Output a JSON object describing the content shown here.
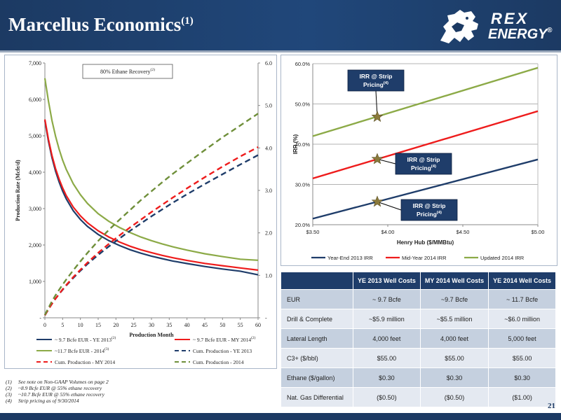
{
  "slide": {
    "title": "Marcellus Economics",
    "title_sup": "(1)",
    "page_number": "21",
    "logo_line1": "REX",
    "logo_line2": "ENERGY",
    "logo_mark": "®"
  },
  "colors": {
    "navy": "#1f3d6a",
    "red": "#ee1c1c",
    "green": "#8caa47",
    "dashed_green": "#6f8f3a",
    "star": "#8a7a3c"
  },
  "chart_data": [
    {
      "type": "line",
      "annotation": "80% Ethane Recovery",
      "annotation_sup": "(2)",
      "xlabel": "Production Month",
      "ylabel": "Production Rate (Mcfe/d)",
      "xlim": [
        0,
        60
      ],
      "ylim": [
        0,
        7000
      ],
      "y2lim": [
        0,
        6.0
      ],
      "x_ticks": [
        0,
        5,
        10,
        15,
        20,
        25,
        30,
        35,
        40,
        45,
        50,
        55,
        60
      ],
      "y_tick_labels": [
        "-",
        "1,000",
        "2,000",
        "3,000",
        "4,000",
        "5,000",
        "6,000",
        "7,000"
      ],
      "y2_tick_labels": [
        "-",
        "1.0",
        "2.0",
        "3.0",
        "4.0",
        "5.0",
        "6.0"
      ],
      "x": [
        0,
        1,
        2,
        3,
        4,
        5,
        6,
        8,
        10,
        12,
        15,
        18,
        21,
        24,
        27,
        30,
        33,
        36,
        40,
        45,
        50,
        55,
        60
      ],
      "series": [
        {
          "name": "~ 9.7 Bcfe EUR - YE 2013",
          "sup": "(2)",
          "axis": "left",
          "style": "solid",
          "color_key": "navy",
          "values": [
            5420,
            4850,
            4400,
            4030,
            3730,
            3480,
            3270,
            2940,
            2700,
            2510,
            2290,
            2120,
            1985,
            1870,
            1775,
            1695,
            1625,
            1560,
            1490,
            1410,
            1340,
            1280,
            1180
          ]
        },
        {
          "name": "~ 9.7 Bcfe EUR - MY 2014",
          "sup": "(2)",
          "axis": "left",
          "style": "solid",
          "color_key": "red",
          "values": [
            5450,
            4900,
            4460,
            4100,
            3810,
            3570,
            3360,
            3040,
            2800,
            2610,
            2390,
            2220,
            2080,
            1965,
            1870,
            1790,
            1715,
            1650,
            1575,
            1495,
            1430,
            1370,
            1310
          ]
        },
        {
          "name": "~11.7 Bcfe EUR - 2014",
          "sup": "(3)",
          "axis": "left",
          "style": "solid",
          "color_key": "green",
          "values": [
            6580,
            5950,
            5420,
            4990,
            4630,
            4330,
            4080,
            3680,
            3380,
            3140,
            2860,
            2650,
            2480,
            2340,
            2220,
            2120,
            2030,
            1950,
            1860,
            1760,
            1680,
            1610,
            1580
          ]
        },
        {
          "name": "Cum. Production - YE 2013",
          "axis": "right",
          "style": "dashed",
          "color_key": "navy",
          "values": [
            0.06,
            0.2,
            0.33,
            0.45,
            0.56,
            0.66,
            0.76,
            0.94,
            1.11,
            1.27,
            1.48,
            1.68,
            1.87,
            2.05,
            2.22,
            2.39,
            2.55,
            2.71,
            2.91,
            3.15,
            3.38,
            3.61,
            3.83
          ]
        },
        {
          "name": "Cum. Production - MY 2014",
          "axis": "right",
          "style": "dashed",
          "color_key": "red",
          "values": [
            0.06,
            0.2,
            0.33,
            0.45,
            0.56,
            0.67,
            0.77,
            0.96,
            1.13,
            1.3,
            1.53,
            1.74,
            1.94,
            2.13,
            2.31,
            2.49,
            2.66,
            2.83,
            3.05,
            3.31,
            3.56,
            3.8,
            4.02
          ]
        },
        {
          "name": "Cum. Production - 2014",
          "axis": "right",
          "style": "dashed",
          "color_key": "dashed_green",
          "values": [
            0.07,
            0.23,
            0.39,
            0.53,
            0.66,
            0.78,
            0.9,
            1.12,
            1.33,
            1.53,
            1.81,
            2.07,
            2.31,
            2.54,
            2.77,
            2.98,
            3.19,
            3.39,
            3.64,
            3.95,
            4.25,
            4.53,
            4.81
          ]
        }
      ]
    },
    {
      "type": "line",
      "xlabel": "Henry Hub ($/MMBtu)",
      "ylabel": "IRR (%)",
      "xlim": [
        3.5,
        5.0
      ],
      "ylim": [
        20,
        60
      ],
      "x_tick_labels": [
        "$3.50",
        "$4.00",
        "$4.50",
        "$5.00"
      ],
      "y_tick_labels": [
        "20.0%",
        "30.0%",
        "40.0%",
        "50.0%",
        "60.0%"
      ],
      "x": [
        3.5,
        5.0
      ],
      "series": [
        {
          "name": "Year-End 2013 IRR",
          "color_key": "navy",
          "values": [
            21.5,
            36.2
          ]
        },
        {
          "name": "Mid-Year 2014 IRR",
          "color_key": "red",
          "values": [
            31.5,
            48.2
          ]
        },
        {
          "name": "Updated 2014 IRR",
          "color_key": "green",
          "values": [
            42.0,
            59.0
          ]
        }
      ],
      "strip_markers": [
        {
          "x": 3.93,
          "y": 46.8,
          "label": "IRR @ Strip Pricing",
          "sup": "(4)"
        },
        {
          "x": 3.93,
          "y": 36.3,
          "label": "IRR @ Strip Pricing",
          "sup": "(4)"
        },
        {
          "x": 3.93,
          "y": 25.7,
          "label": "IRR @ Strip Pricing",
          "sup": "(4)"
        }
      ]
    }
  ],
  "table": {
    "headers": [
      "",
      "YE 2013 Well Costs",
      "MY 2014 Well Costs",
      "YE 2014 Well Costs"
    ],
    "rows": [
      [
        "EUR",
        "~ 9.7 Bcfe",
        "~9.7 Bcfe",
        "~ 11.7 Bcfe"
      ],
      [
        "Drill & Complete",
        "~$5.9 million",
        "~$5.5 million",
        "~$6.0 million"
      ],
      [
        "Lateral Length",
        "4,000 feet",
        "4,000 feet",
        "5,000 feet"
      ],
      [
        "C3+ ($/bbl)",
        "$55.00",
        "$55.00",
        "$55.00"
      ],
      [
        "Ethane ($/gallon)",
        "$0.30",
        "$0.30",
        "$0.30"
      ],
      [
        "Nat. Gas Differential",
        "($0.50)",
        "($0.50)",
        "($1.00)"
      ]
    ]
  },
  "footnotes": [
    {
      "n": "(1)",
      "text": "See note on Non-GAAP Volumes on page 2"
    },
    {
      "n": "(2)",
      "text": "~8.9 Bcfe EUR @ 55% ethane recovery"
    },
    {
      "n": "(3)",
      "text": "~10.7 Bcfe EUR @ 55% ethane recovery"
    },
    {
      "n": "(4)",
      "text": "Strip pricing as of 9/30/2014"
    }
  ]
}
